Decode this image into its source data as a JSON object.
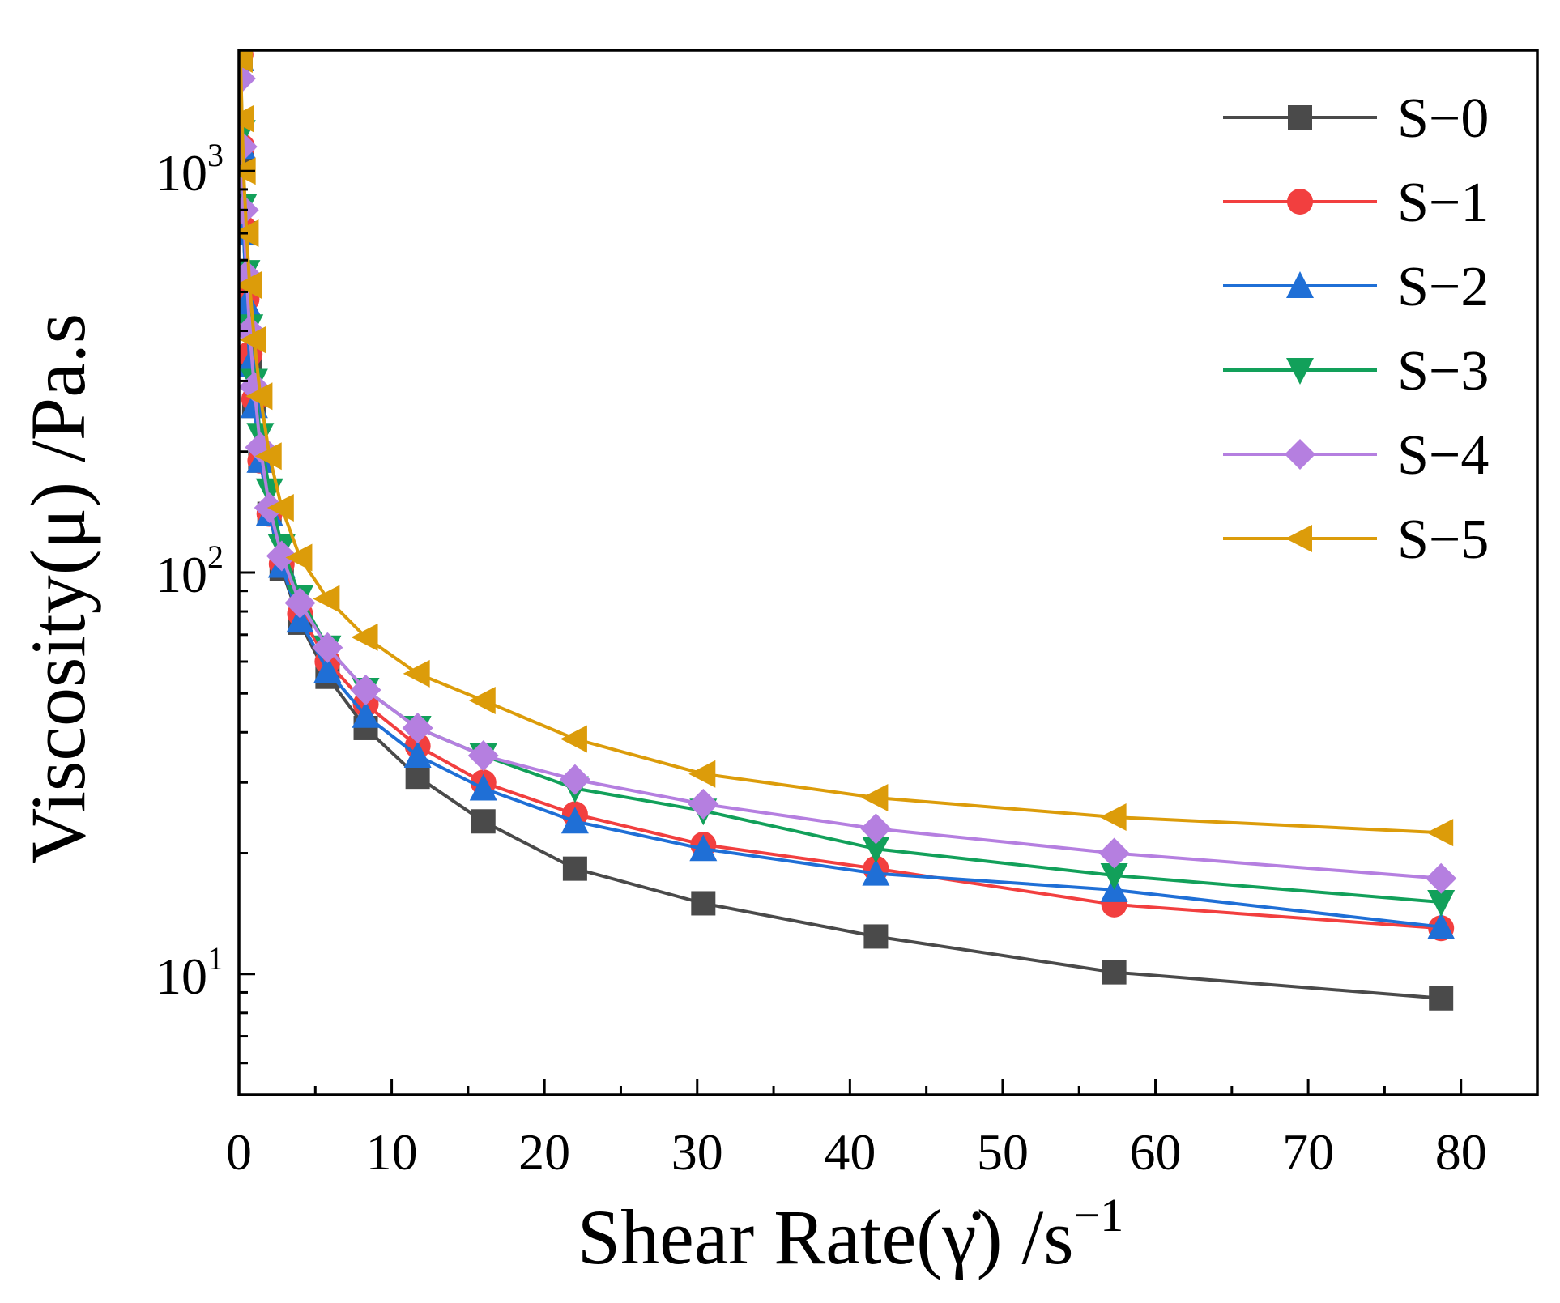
{
  "chart_data": {
    "type": "line",
    "title": "",
    "xlabel": "Shear Rate(γ̇) /s",
    "xlabel_sup": "−1",
    "ylabel": "Viscosity(μ) /Pa.s",
    "x_scale": "linear",
    "y_scale": "log",
    "xlim": [
      0,
      85
    ],
    "ylim": [
      5,
      2000
    ],
    "x_ticks": [
      0,
      10,
      20,
      30,
      40,
      50,
      60,
      70,
      80
    ],
    "y_ticks": [
      {
        "value": 10,
        "base": "10",
        "exp": "1"
      },
      {
        "value": 100,
        "base": "10",
        "exp": "2"
      },
      {
        "value": 1000,
        "base": "10",
        "exp": "3"
      }
    ],
    "grid": false,
    "legend_position": "top-right",
    "x": [
      0.1,
      0.2,
      0.3,
      0.5,
      0.7,
      1.0,
      1.4,
      2.0,
      2.8,
      4.0,
      5.8,
      8.3,
      11.7,
      16.0,
      22.0,
      30.4,
      41.7,
      57.3,
      78.7
    ],
    "series": [
      {
        "name": "S−0",
        "color": "#4a4a4a",
        "marker": "square",
        "values": [
          1900,
          1100,
          700,
          500,
          340,
          260,
          190,
          140,
          102,
          75,
          55,
          41,
          31,
          24,
          18.3,
          15.0,
          12.4,
          10.1,
          8.7
        ]
      },
      {
        "name": "S−1",
        "color": "#f23f3f",
        "marker": "circle",
        "values": [
          1950,
          1150,
          720,
          480,
          350,
          270,
          190,
          140,
          105,
          79,
          60,
          47,
          37,
          30,
          25,
          21,
          18.3,
          14.9,
          13.0
        ]
      },
      {
        "name": "S−2",
        "color": "#1f6fd6",
        "marker": "triangle-up",
        "values": [
          1900,
          1150,
          700,
          470,
          330,
          260,
          190,
          140,
          104,
          76,
          57,
          44,
          35,
          29,
          24,
          20.5,
          17.8,
          16.2,
          13.1
        ]
      },
      {
        "name": "S−3",
        "color": "#12a05a",
        "marker": "triangle-down",
        "values": [
          2000,
          1250,
          820,
          560,
          410,
          300,
          220,
          160,
          116,
          87,
          65,
          51,
          41,
          35,
          29,
          25.5,
          20.5,
          17.6,
          15.1
        ]
      },
      {
        "name": "S−4",
        "color": "#b57fe0",
        "marker": "diamond",
        "values": [
          1700,
          1150,
          800,
          550,
          400,
          290,
          205,
          145,
          110,
          84,
          65,
          51,
          41,
          35,
          30.5,
          26.5,
          23,
          20,
          17.3
        ]
      },
      {
        "name": "S−5",
        "color": "#dc9c0a",
        "marker": "triangle-left",
        "values": [
          1900,
          1350,
          1000,
          700,
          520,
          380,
          275,
          195,
          145,
          109,
          86,
          69,
          56,
          48,
          38.5,
          31.5,
          27.5,
          24.6,
          22.5
        ]
      }
    ]
  }
}
